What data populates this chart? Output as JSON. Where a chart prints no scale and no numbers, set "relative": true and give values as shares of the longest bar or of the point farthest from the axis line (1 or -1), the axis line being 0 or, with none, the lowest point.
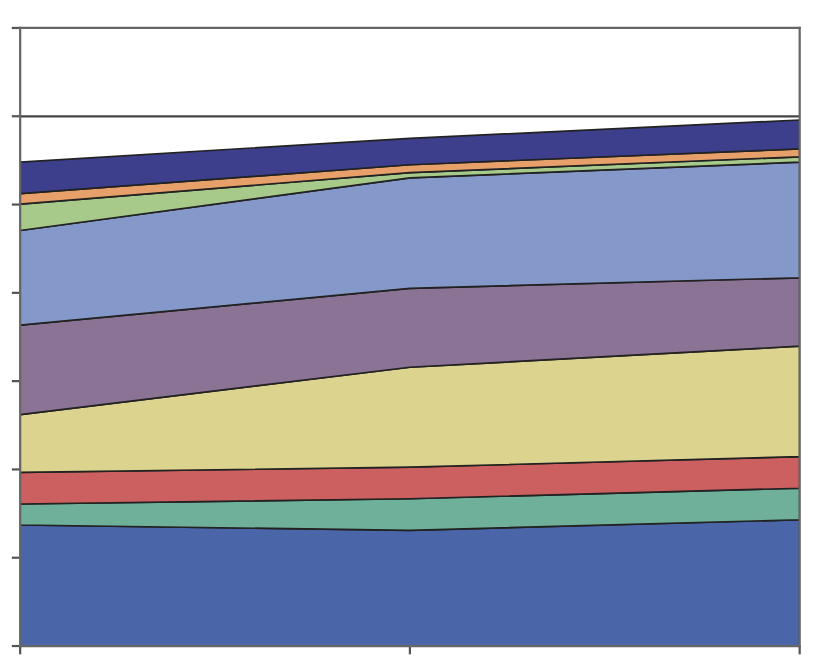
{
  "chart_data": {
    "type": "area",
    "stacked": true,
    "relative": true,
    "grid": "y",
    "categories": [
      null,
      null,
      null
    ],
    "series": [
      {
        "color": "#4a66a8",
        "values": [
          0.23,
          0.22,
          0.24
        ]
      },
      {
        "color": "#6fb09a",
        "values": [
          0.04,
          0.06,
          0.06
        ]
      },
      {
        "color": "#cc6060",
        "values": [
          0.06,
          0.06,
          0.06
        ]
      },
      {
        "color": "#dcd38e",
        "values": [
          0.11,
          0.19,
          0.21
        ]
      },
      {
        "color": "#8a7394",
        "values": [
          0.17,
          0.15,
          0.13
        ]
      },
      {
        "color": "#8499c9",
        "values": [
          0.18,
          0.21,
          0.22
        ]
      },
      {
        "color": "#a7c98a",
        "values": [
          0.05,
          0.01,
          0.01
        ]
      },
      {
        "color": "#e8a06a",
        "values": [
          0.02,
          0.015,
          0.015
        ]
      },
      {
        "color": "#3e3f8c",
        "values": [
          0.06,
          0.05,
          0.055
        ]
      }
    ]
  }
}
